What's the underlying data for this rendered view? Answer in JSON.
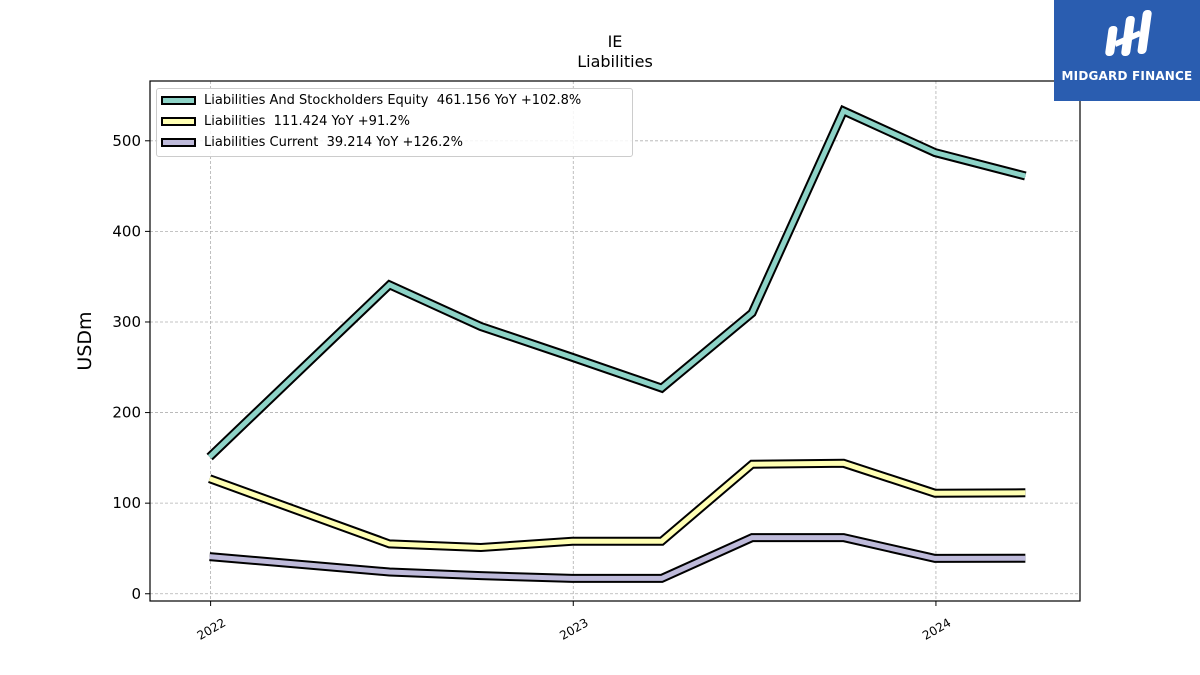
{
  "chart_data": {
    "type": "line",
    "title": "IE",
    "subtitle": "Liabilities",
    "xlabel": "",
    "ylabel": "USDm",
    "x_ticks": [
      "2022",
      "2023",
      "2024"
    ],
    "y_ticks": [
      "0",
      "100",
      "200",
      "300",
      "400",
      "500"
    ],
    "ylim": [
      -8,
      566
    ],
    "grid": true,
    "legend_position": "top-left",
    "x": [
      "2021-12-31",
      "2022-06-30",
      "2022-09-30",
      "2022-12-31",
      "2023-03-31",
      "2023-06-30",
      "2023-09-30",
      "2023-12-31",
      "2024-03-31"
    ],
    "series": [
      {
        "name": "Liabilities And Stockholders Equity",
        "legend_label": "Liabilities And Stockholders Equity  461.156 YoY +102.8%",
        "color": "#8dd3c7",
        "values": [
          151,
          341,
          295,
          261,
          227,
          310,
          533,
          487,
          461.156
        ]
      },
      {
        "name": "Liabilities",
        "legend_label": "Liabilities  111.424 YoY +91.2%",
        "color": "#ffffb3",
        "values": [
          127,
          55,
          51,
          58,
          58,
          143,
          144,
          111,
          111.424
        ]
      },
      {
        "name": "Liabilities Current",
        "legend_label": "Liabilities Current  39.214 YoY +126.2%",
        "color": "#bebada",
        "values": [
          41,
          24,
          20,
          17,
          17,
          62,
          62,
          39,
          39.214
        ]
      }
    ]
  },
  "brand": {
    "name": "MIDGARD FINANCE",
    "background": "#2a5db0",
    "text_color": "#ffffff"
  }
}
